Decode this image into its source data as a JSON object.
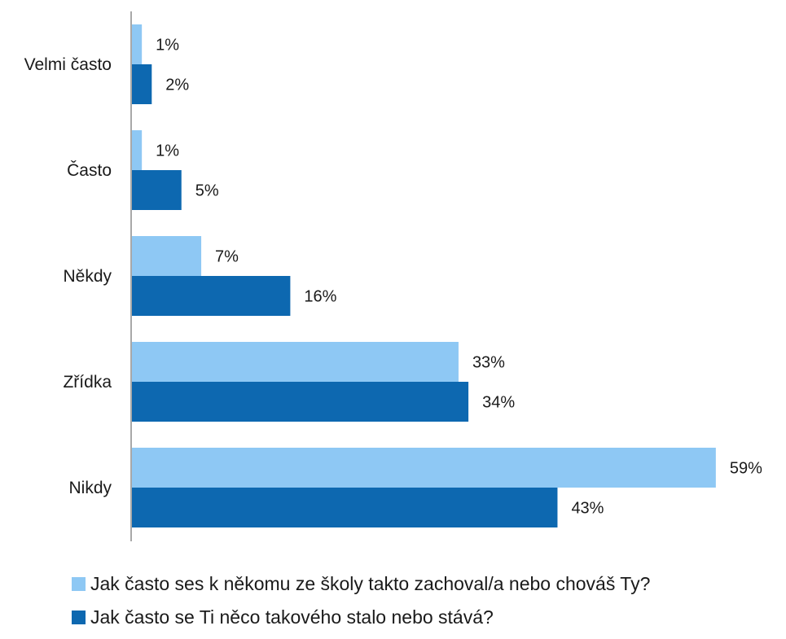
{
  "chart_data": {
    "type": "bar",
    "orientation": "horizontal",
    "categories": [
      "Velmi často",
      "Často",
      "Někdy",
      "Zřídka",
      "Nikdy"
    ],
    "series": [
      {
        "name": "Jak často ses k někomu ze školy takto zachoval/a nebo chováš Ty?",
        "color": "#8ec8f4",
        "values": [
          1,
          1,
          7,
          33,
          59
        ],
        "labels": [
          "1%",
          "1%",
          "7%",
          "33%",
          "59%"
        ]
      },
      {
        "name": "Jak často se Ti něco takového stalo nebo stává?",
        "color": "#0d68b0",
        "values": [
          2,
          5,
          16,
          34,
          43
        ],
        "labels": [
          "2%",
          "5%",
          "16%",
          "34%",
          "43%"
        ]
      }
    ],
    "xlim": [
      0,
      59
    ],
    "title": "",
    "xlabel": "",
    "ylabel": "",
    "grid": false,
    "legend_position": "bottom"
  }
}
